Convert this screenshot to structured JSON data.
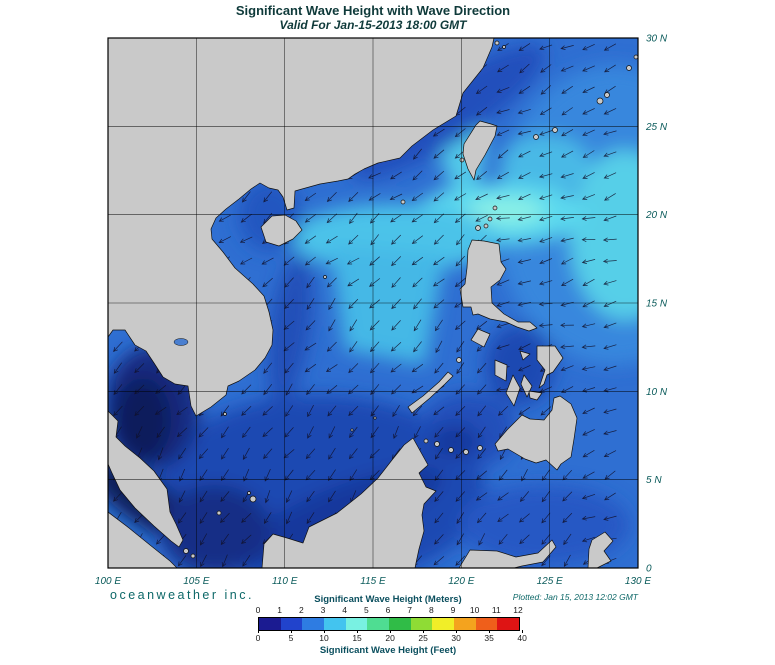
{
  "header": {
    "title": "Significant Wave Height with Wave Direction",
    "subtitle": "Valid For Jan-15-2013 18:00 GMT"
  },
  "axes": {
    "lon_ticks": [
      "100 E",
      "105 E",
      "110 E",
      "115 E",
      "120 E",
      "125 E",
      "130 E"
    ],
    "lat_ticks": [
      "30 N",
      "25 N",
      "20 N",
      "15 N",
      "10 N",
      "5 N",
      "0"
    ]
  },
  "footer": {
    "credit": "oceanweather inc.",
    "plotted": "Plotted: Jan 15, 2013 12:02 GMT"
  },
  "legend": {
    "meters_title": "Significant Wave Height (Meters)",
    "feet_title": "Significant Wave Height (Feet)",
    "meters_ticks": [
      "0",
      "1",
      "2",
      "3",
      "4",
      "5",
      "6",
      "7",
      "8",
      "9",
      "10",
      "11",
      "12"
    ],
    "feet_ticks": [
      "0",
      "5",
      "10",
      "15",
      "20",
      "25",
      "30",
      "35",
      "40"
    ],
    "colors": [
      "#1b1b91",
      "#2143cc",
      "#2e7ce2",
      "#43c4ef",
      "#79f1e2",
      "#4fdd92",
      "#30bc47",
      "#8fdc35",
      "#f1ee28",
      "#f4a31e",
      "#ef5f1b",
      "#de1414"
    ]
  },
  "map_colors": {
    "land": "#c9c9c9",
    "coast": "#111111",
    "ocean_base": "#2f6fd2",
    "grid": "#000000",
    "arrow": "#10102a"
  }
}
